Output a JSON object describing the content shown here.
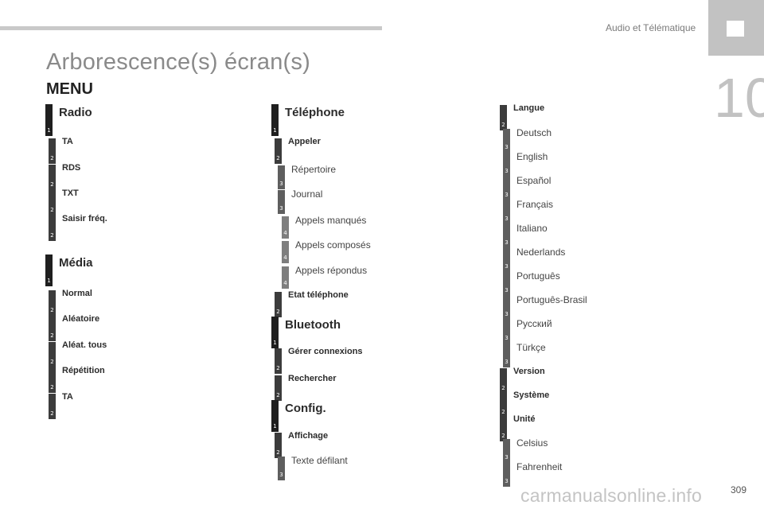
{
  "header": {
    "chapter_title": "Audio et Télématique",
    "chapter_number": "10"
  },
  "page": {
    "title": "Arborescence(s) écran(s)",
    "menu_heading": "MENU",
    "page_number": "309"
  },
  "watermark": "carmanualsonline.info",
  "col1": [
    {
      "level": "1",
      "label": "Radio"
    },
    {
      "level": "2",
      "label": "TA"
    },
    {
      "level": "2",
      "label": "RDS"
    },
    {
      "level": "2",
      "label": "TXT"
    },
    {
      "level": "2",
      "label": "Saisir fréq."
    },
    {
      "level": "1",
      "label": "Média"
    },
    {
      "level": "2",
      "label": "Normal"
    },
    {
      "level": "2",
      "label": "Aléatoire"
    },
    {
      "level": "2",
      "label": "Aléat. tous"
    },
    {
      "level": "2",
      "label": "Répétition"
    },
    {
      "level": "2",
      "label": "TA"
    }
  ],
  "col2": [
    {
      "level": "1",
      "label": "Téléphone"
    },
    {
      "level": "2",
      "label": "Appeler"
    },
    {
      "level": "3",
      "label": "Répertoire"
    },
    {
      "level": "3",
      "label": "Journal"
    },
    {
      "level": "4",
      "label": "Appels manqués"
    },
    {
      "level": "4",
      "label": "Appels composés"
    },
    {
      "level": "4",
      "label": "Appels répondus"
    },
    {
      "level": "2",
      "label": "Etat téléphone"
    },
    {
      "level": "1",
      "label": "Bluetooth"
    },
    {
      "level": "2",
      "label": "Gérer connexions"
    },
    {
      "level": "2",
      "label": "Rechercher"
    },
    {
      "level": "1",
      "label": "Config."
    },
    {
      "level": "2",
      "label": "Affichage"
    },
    {
      "level": "3",
      "label": "Texte défilant"
    }
  ],
  "col3": [
    {
      "level": "2",
      "label": "Langue"
    },
    {
      "level": "3",
      "label": "Deutsch"
    },
    {
      "level": "3",
      "label": "English"
    },
    {
      "level": "3",
      "label": "Español"
    },
    {
      "level": "3",
      "label": "Français"
    },
    {
      "level": "3",
      "label": "Italiano"
    },
    {
      "level": "3",
      "label": "Nederlands"
    },
    {
      "level": "3",
      "label": "Português"
    },
    {
      "level": "3",
      "label": "Português-Brasil"
    },
    {
      "level": "3",
      "label": "Pусский"
    },
    {
      "level": "3",
      "label": "Türkçe"
    },
    {
      "level": "2",
      "label": "Version"
    },
    {
      "level": "2",
      "label": "Système"
    },
    {
      "level": "2",
      "label": "Unité"
    },
    {
      "level": "3",
      "label": "Celsius"
    },
    {
      "level": "3",
      "label": "Fahrenheit"
    }
  ]
}
